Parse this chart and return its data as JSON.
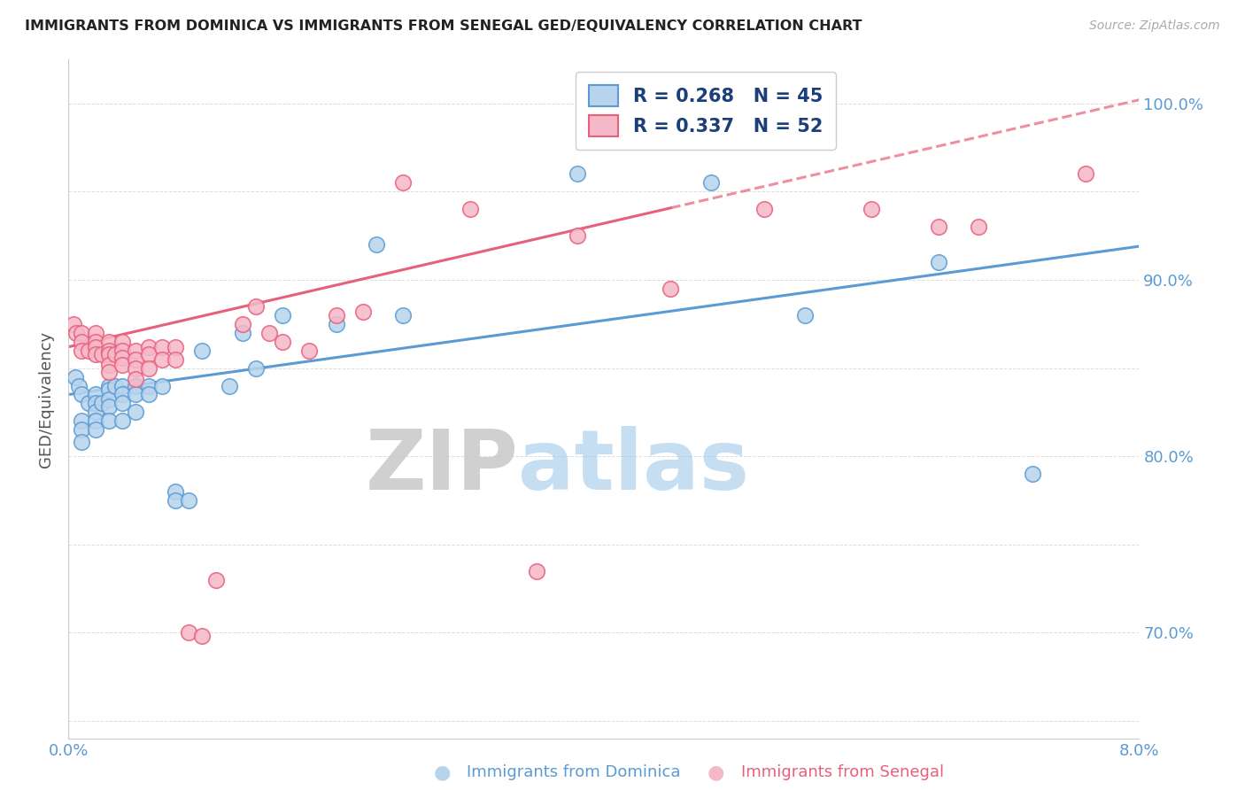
{
  "title": "IMMIGRANTS FROM DOMINICA VS IMMIGRANTS FROM SENEGAL GED/EQUIVALENCY CORRELATION CHART",
  "source": "Source: ZipAtlas.com",
  "ylabel": "GED/Equivalency",
  "xlim": [
    0.0,
    0.08
  ],
  "ylim": [
    0.64,
    1.025
  ],
  "xtick_positions": [
    0.0,
    0.01,
    0.02,
    0.03,
    0.04,
    0.05,
    0.06,
    0.07,
    0.08
  ],
  "xticklabels": [
    "0.0%",
    "",
    "",
    "",
    "",
    "",
    "",
    "",
    "8.0%"
  ],
  "ytick_positions": [
    0.65,
    0.7,
    0.75,
    0.8,
    0.85,
    0.9,
    0.95,
    1.0
  ],
  "yticklabels": [
    "",
    "70.0%",
    "",
    "80.0%",
    "",
    "90.0%",
    "",
    "100.0%"
  ],
  "dominica_fill": "#b8d4ec",
  "dominica_edge": "#5b9bd5",
  "senegal_fill": "#f5b8c8",
  "senegal_edge": "#e8607a",
  "legend_text_color": "#1a3f7a",
  "legend_R1": "R = 0.268",
  "legend_N1": "N = 45",
  "legend_R2": "R = 0.337",
  "legend_N2": "N = 52",
  "label1": "Immigrants from Dominica",
  "label2": "Immigrants from Senegal",
  "watermark_zip": "ZIP",
  "watermark_atlas": "atlas",
  "dominica_x": [
    0.0005,
    0.0008,
    0.001,
    0.001,
    0.001,
    0.001,
    0.0015,
    0.002,
    0.002,
    0.002,
    0.002,
    0.002,
    0.0025,
    0.003,
    0.003,
    0.003,
    0.003,
    0.003,
    0.0035,
    0.004,
    0.004,
    0.004,
    0.004,
    0.005,
    0.005,
    0.005,
    0.006,
    0.006,
    0.007,
    0.008,
    0.008,
    0.009,
    0.01,
    0.012,
    0.013,
    0.014,
    0.016,
    0.02,
    0.023,
    0.025,
    0.038,
    0.048,
    0.055,
    0.065,
    0.072
  ],
  "dominica_y": [
    0.845,
    0.84,
    0.835,
    0.82,
    0.815,
    0.808,
    0.83,
    0.835,
    0.83,
    0.825,
    0.82,
    0.815,
    0.83,
    0.84,
    0.838,
    0.832,
    0.828,
    0.82,
    0.84,
    0.84,
    0.835,
    0.83,
    0.82,
    0.84,
    0.835,
    0.825,
    0.84,
    0.835,
    0.84,
    0.78,
    0.775,
    0.775,
    0.86,
    0.84,
    0.87,
    0.85,
    0.88,
    0.875,
    0.92,
    0.88,
    0.96,
    0.955,
    0.88,
    0.91,
    0.79
  ],
  "senegal_x": [
    0.0004,
    0.0006,
    0.001,
    0.001,
    0.001,
    0.0015,
    0.002,
    0.002,
    0.002,
    0.002,
    0.0025,
    0.003,
    0.003,
    0.003,
    0.003,
    0.003,
    0.0035,
    0.004,
    0.004,
    0.004,
    0.004,
    0.005,
    0.005,
    0.005,
    0.005,
    0.006,
    0.006,
    0.006,
    0.007,
    0.007,
    0.008,
    0.008,
    0.009,
    0.01,
    0.011,
    0.013,
    0.014,
    0.015,
    0.016,
    0.018,
    0.02,
    0.022,
    0.025,
    0.03,
    0.035,
    0.038,
    0.045,
    0.052,
    0.06,
    0.065,
    0.068,
    0.076
  ],
  "senegal_y": [
    0.875,
    0.87,
    0.87,
    0.865,
    0.86,
    0.86,
    0.87,
    0.865,
    0.862,
    0.858,
    0.858,
    0.865,
    0.86,
    0.858,
    0.852,
    0.848,
    0.858,
    0.865,
    0.86,
    0.856,
    0.852,
    0.86,
    0.855,
    0.85,
    0.844,
    0.862,
    0.858,
    0.85,
    0.862,
    0.855,
    0.862,
    0.855,
    0.7,
    0.698,
    0.73,
    0.875,
    0.885,
    0.87,
    0.865,
    0.86,
    0.88,
    0.882,
    0.955,
    0.94,
    0.735,
    0.925,
    0.895,
    0.94,
    0.94,
    0.93,
    0.93,
    0.96
  ],
  "senegal_dashed_from": 0.045,
  "dominica_trend_intercept": 0.835,
  "dominica_trend_slope": 1.05,
  "senegal_trend_intercept": 0.862,
  "senegal_trend_slope": 1.75
}
